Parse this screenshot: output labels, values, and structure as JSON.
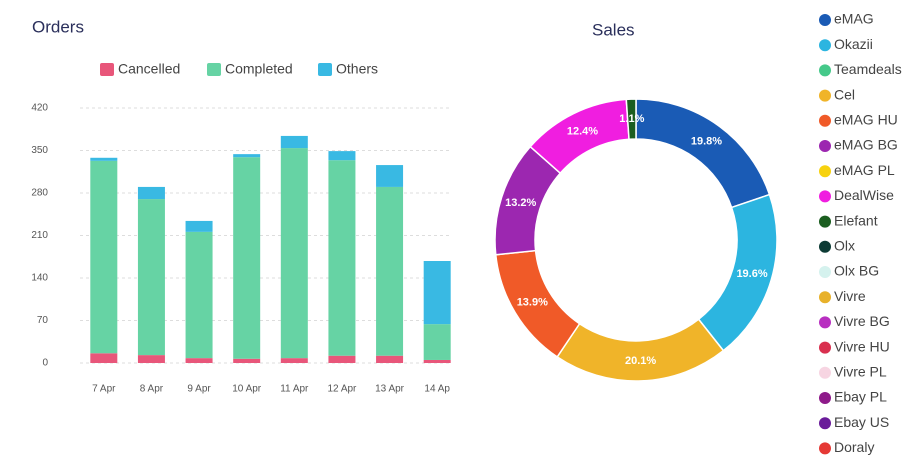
{
  "chart_data": [
    {
      "type": "bar",
      "stacked": true,
      "title": "Orders",
      "categories": [
        "7 Apr",
        "8 Apr",
        "9 Apr",
        "10 Apr",
        "11 Apr",
        "12 Apr",
        "13 Apr",
        "14 Ap"
      ],
      "series": [
        {
          "name": "Cancelled",
          "color": "#e8567a",
          "values": [
            16,
            13,
            8,
            7,
            8,
            12,
            12,
            5
          ]
        },
        {
          "name": "Completed",
          "color": "#66d3a4",
          "values": [
            317,
            257,
            208,
            332,
            346,
            322,
            278,
            59
          ]
        },
        {
          "name": "Others",
          "color": "#39b9e3",
          "values": [
            5,
            20,
            18,
            5,
            20,
            15,
            36,
            104
          ]
        }
      ],
      "ylim": [
        0,
        420
      ],
      "yticks": [
        0,
        70,
        140,
        210,
        280,
        350,
        420
      ],
      "grid": true,
      "legend": "top"
    },
    {
      "type": "pie",
      "donut": true,
      "title": "Sales",
      "legend": "right",
      "categories": [
        "eMAG",
        "Okazii",
        "Teamdeals",
        "Cel",
        "eMAG HU",
        "eMAG BG",
        "eMAG PL",
        "DealWise",
        "Elefant",
        "Olx",
        "Olx BG",
        "Vivre",
        "Vivre BG",
        "Vivre HU",
        "Vivre PL",
        "Ebay PL",
        "Ebay US",
        "Doraly"
      ],
      "values": [
        19.8,
        19.6,
        0,
        20.1,
        13.9,
        13.2,
        0,
        12.4,
        1.1,
        0,
        0,
        0,
        0,
        0,
        0,
        0,
        0,
        0
      ],
      "value_labels": [
        "19.8%",
        "19.6%",
        null,
        "20.1%",
        "13.9%",
        "13.2%",
        null,
        "12.4%",
        "1.1%",
        null,
        null,
        null,
        null,
        null,
        null,
        null,
        null,
        null
      ],
      "colors": [
        "#1a5bb5",
        "#2cb5e0",
        "#45c98a",
        "#f0b429",
        "#f05a28",
        "#9c27b0",
        "#f7d20f",
        "#f01ee0",
        "#1b5e20",
        "#0d3b35",
        "#d5f2ee",
        "#e8b12a",
        "#b82fc0",
        "#d9304f",
        "#f7d5e2",
        "#8e1a8a",
        "#6a1b9a",
        "#e53935"
      ]
    }
  ]
}
